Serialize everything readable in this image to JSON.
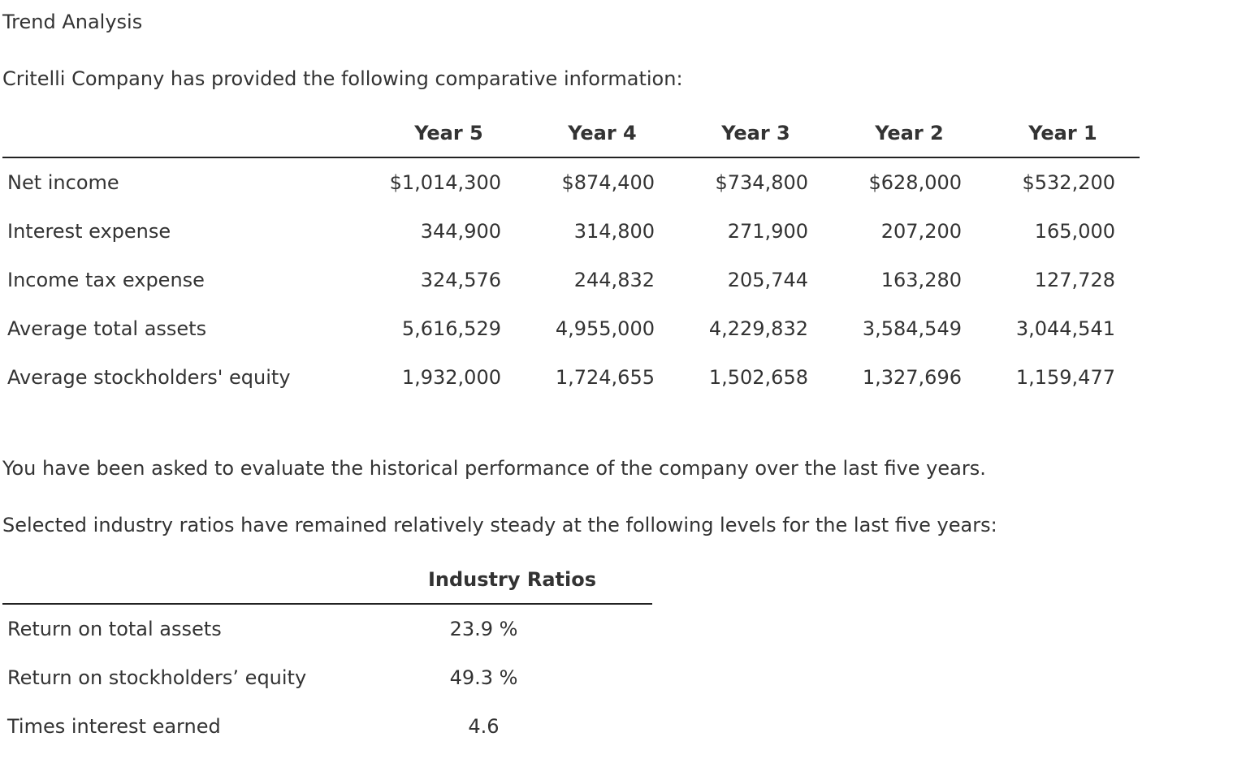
{
  "title": "Trend Analysis",
  "intro": "Critelli Company has provided the following comparative information:",
  "comparative_table": {
    "headers": [
      "",
      "Year 5",
      "Year 4",
      "Year 3",
      "Year 2",
      "Year 1"
    ],
    "rows": [
      {
        "label": "Net income",
        "values": [
          "$1,014,300",
          "$874,400",
          "$734,800",
          "$628,000",
          "$532,200"
        ]
      },
      {
        "label": "Interest expense",
        "values": [
          "344,900",
          "314,800",
          "271,900",
          "207,200",
          "165,000"
        ]
      },
      {
        "label": "Income tax expense",
        "values": [
          "324,576",
          "244,832",
          "205,744",
          "163,280",
          "127,728"
        ]
      },
      {
        "label": "Average total assets",
        "values": [
          "5,616,529",
          "4,955,000",
          "4,229,832",
          "3,584,549",
          "3,044,541"
        ]
      },
      {
        "label": "Average stockholders' equity",
        "values": [
          "1,932,000",
          "1,724,655",
          "1,502,658",
          "1,327,696",
          "1,159,477"
        ]
      }
    ]
  },
  "evaluation_text": "You have been asked to evaluate the historical performance of the company over the last five years.",
  "industry_text": "Selected industry ratios have remained relatively steady at the following levels for the last five years:",
  "industry_table": {
    "header": "Industry Ratios",
    "rows": [
      {
        "label": "Return on total assets",
        "value": "23.9 %"
      },
      {
        "label": "Return on stockholders’ equity",
        "value": "49.3 %"
      },
      {
        "label": "Times interest earned",
        "value": "4.6"
      }
    ]
  }
}
